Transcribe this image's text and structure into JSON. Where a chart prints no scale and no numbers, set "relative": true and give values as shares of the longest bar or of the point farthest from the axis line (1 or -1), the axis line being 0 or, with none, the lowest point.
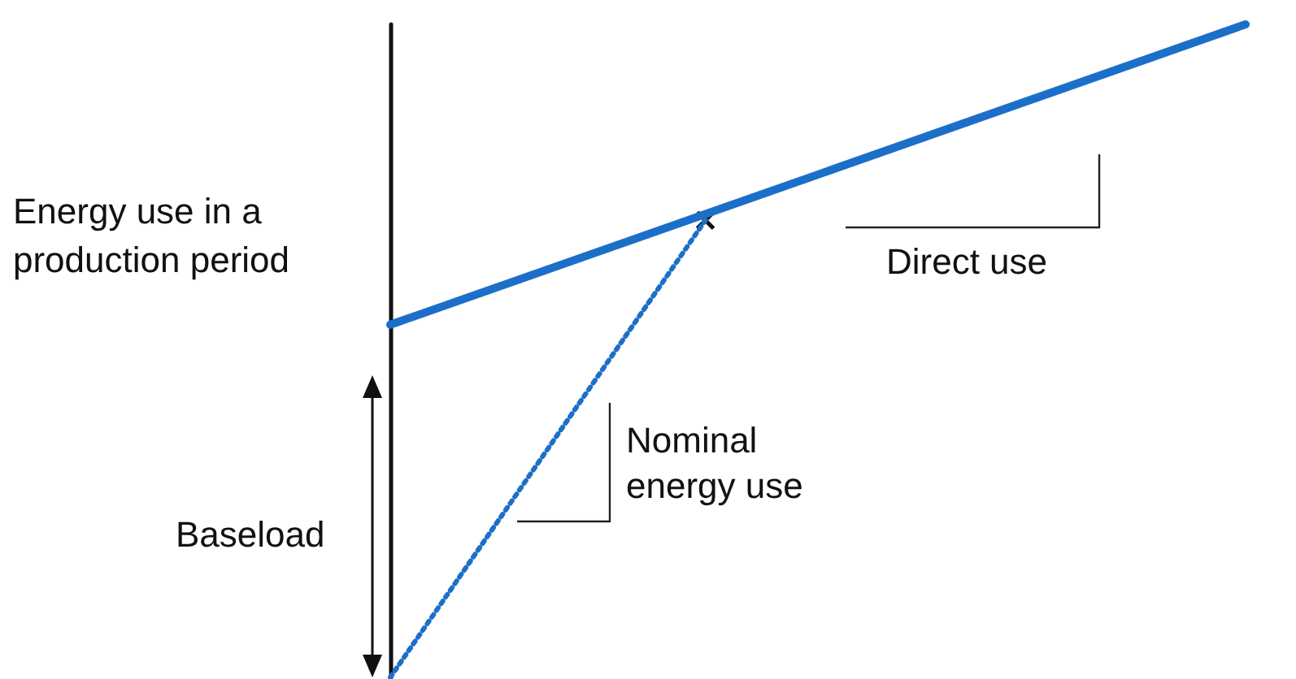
{
  "chart_data": {
    "type": "line",
    "relative": true,
    "ylabel": "Energy use in a production period",
    "categories": [
      null,
      null,
      null,
      null,
      null,
      null,
      null,
      null,
      null,
      null,
      null,
      null,
      null,
      null,
      null,
      null,
      null,
      null,
      null,
      null
    ],
    "series": [
      {
        "color": "#1c6fc8",
        "line_style": "solid",
        "marker": "none",
        "values": [
          0.54,
          null,
          null,
          null,
          null,
          null,
          null,
          null,
          null,
          null,
          null,
          null,
          null,
          null,
          null,
          null,
          null,
          null,
          null,
          1
        ]
      },
      {
        "color": "#1c6fc8",
        "line_style": "dotted",
        "marker": "cross",
        "values": [
          0,
          null,
          null,
          null,
          null,
          null,
          null,
          0.7,
          null,
          null,
          null,
          null,
          null,
          null,
          null,
          null,
          null,
          null,
          null,
          null
        ]
      }
    ],
    "annotations": [
      "Direct use",
      "Nominal energy use",
      "Baseload"
    ],
    "tick_labels": false,
    "grid": false
  }
}
